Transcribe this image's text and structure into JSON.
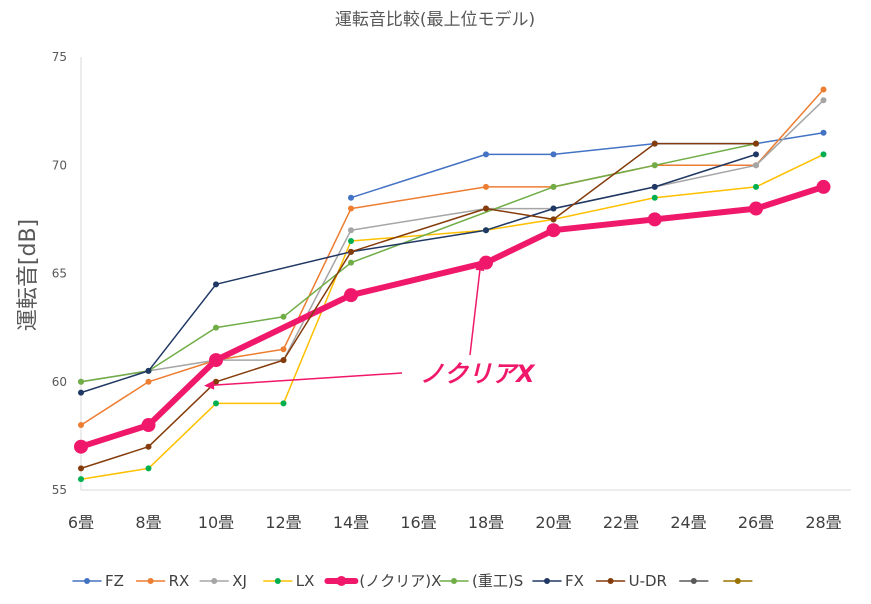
{
  "chart_data": {
    "type": "line",
    "title": "運転音比較(最上位モデル)",
    "ylabel": "運転音[dB]",
    "xlabel": "",
    "ylim": [
      55,
      75
    ],
    "yticks": [
      55,
      60,
      65,
      70,
      75
    ],
    "grid": false,
    "legend_position": "bottom",
    "categories": [
      "6畳",
      "8畳",
      "10畳",
      "12畳",
      "14畳",
      "16畳",
      "18畳",
      "20畳",
      "22畳",
      "24畳",
      "26畳",
      "28畳"
    ],
    "series": [
      {
        "name": "FZ",
        "color": "#4472c4",
        "emphasis": false,
        "points": [
          [
            4,
            68.5
          ],
          [
            6,
            70.5
          ],
          [
            7,
            70.5
          ],
          [
            8.5,
            71
          ],
          [
            10,
            71
          ],
          [
            11,
            71.5
          ]
        ]
      },
      {
        "name": "RX",
        "color": "#ed7d31",
        "emphasis": false,
        "points": [
          [
            0,
            58
          ],
          [
            1,
            60
          ],
          [
            2,
            61
          ],
          [
            3,
            61.5
          ],
          [
            4,
            68
          ],
          [
            6,
            69
          ],
          [
            7,
            69
          ],
          [
            8.5,
            70
          ],
          [
            10,
            70
          ],
          [
            11,
            73.5
          ]
        ]
      },
      {
        "name": "XJ",
        "color": "#a5a5a5",
        "emphasis": false,
        "points": [
          [
            0,
            60
          ],
          [
            1,
            60.5
          ],
          [
            2,
            61
          ],
          [
            3,
            61
          ],
          [
            4,
            67
          ],
          [
            6,
            68
          ],
          [
            7,
            68
          ],
          [
            8.5,
            69
          ],
          [
            10,
            70
          ],
          [
            11,
            73
          ]
        ]
      },
      {
        "name": "LX",
        "color": "#ffc000",
        "marker_color": "#00b050",
        "emphasis": false,
        "points": [
          [
            0,
            55.5
          ],
          [
            1,
            56
          ],
          [
            2,
            59
          ],
          [
            3,
            59
          ],
          [
            4,
            66.5
          ],
          [
            6,
            67
          ],
          [
            7,
            67.5
          ],
          [
            8.5,
            68.5
          ],
          [
            10,
            69
          ],
          [
            11,
            70.5
          ]
        ]
      },
      {
        "name": "(ノクリア)X",
        "color": "#f0186a",
        "emphasis": true,
        "points": [
          [
            0,
            57
          ],
          [
            1,
            58
          ],
          [
            2,
            61
          ],
          [
            4,
            64
          ],
          [
            6,
            65.5
          ],
          [
            7,
            67
          ],
          [
            8.5,
            67.5
          ],
          [
            10,
            68
          ],
          [
            11,
            69
          ]
        ]
      },
      {
        "name": "(重工)S",
        "color": "#70ad47",
        "emphasis": false,
        "points": [
          [
            0,
            60
          ],
          [
            1,
            60.5
          ],
          [
            2,
            62.5
          ],
          [
            3,
            63
          ],
          [
            4,
            65.5
          ],
          [
            7,
            69
          ],
          [
            8.5,
            70
          ],
          [
            10,
            71
          ]
        ]
      },
      {
        "name": "FX",
        "color": "#203864",
        "emphasis": false,
        "points": [
          [
            0,
            59.5
          ],
          [
            1,
            60.5
          ],
          [
            2,
            64.5
          ],
          [
            4,
            66
          ],
          [
            6,
            67
          ],
          [
            7,
            68
          ],
          [
            8.5,
            69
          ],
          [
            10,
            70.5
          ]
        ]
      },
      {
        "name": "U-DR",
        "color": "#843c0c",
        "emphasis": false,
        "points": [
          [
            0,
            56
          ],
          [
            1,
            57
          ],
          [
            2,
            60
          ],
          [
            3,
            61
          ],
          [
            4,
            66
          ],
          [
            6,
            68
          ],
          [
            7,
            67.5
          ],
          [
            8.5,
            71
          ],
          [
            10,
            71
          ]
        ]
      },
      {
        "name": "",
        "color": "#595959",
        "emphasis": false,
        "points": []
      },
      {
        "name": "",
        "color": "#997300",
        "emphasis": false,
        "points": []
      }
    ],
    "annotations": [
      {
        "text": "ノクリアX",
        "points_to": [
          [
            2,
            60
          ],
          [
            6,
            65
          ]
        ]
      }
    ]
  }
}
